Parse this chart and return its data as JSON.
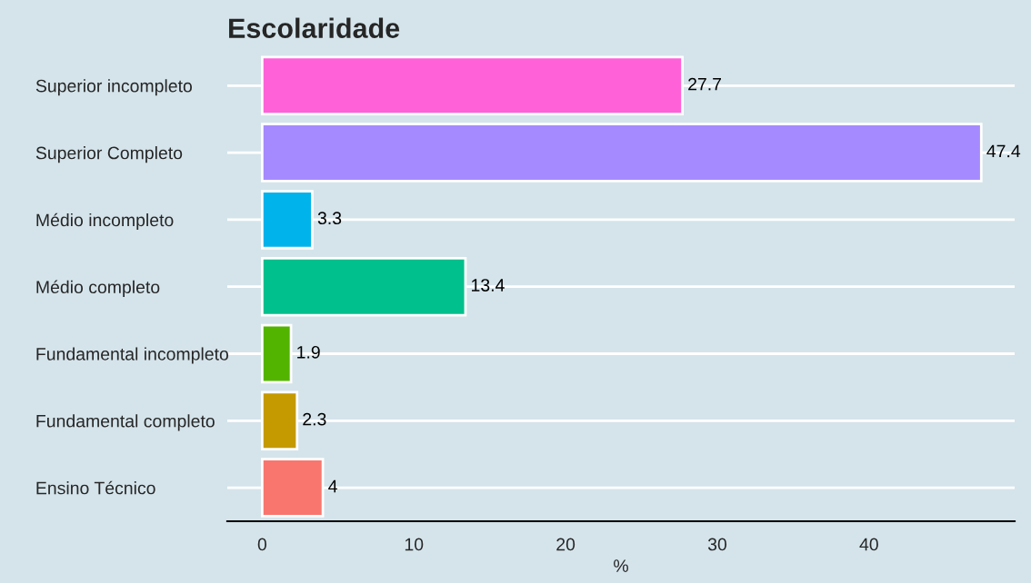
{
  "chart_data": {
    "type": "bar",
    "orientation": "horizontal",
    "title": "Escolaridade",
    "xlabel": "%",
    "categories": [
      "Superior incompleto",
      "Superior Completo",
      "Médio incompleto",
      "Médio completo",
      "Fundamental incompleto",
      "Fundamental completo",
      "Ensino Técnico"
    ],
    "values": [
      27.7,
      47.4,
      3.3,
      13.4,
      1.9,
      2.3,
      4
    ],
    "colors": [
      "#ff61d8",
      "#a58aff",
      "#00b3ea",
      "#00c08d",
      "#53b400",
      "#c49a00",
      "#f8766d"
    ],
    "data_labels": true,
    "xlim": [
      -2.3,
      49.6
    ],
    "xticks": [
      0,
      10,
      20,
      30,
      40
    ],
    "grid": "y",
    "legend": false
  }
}
